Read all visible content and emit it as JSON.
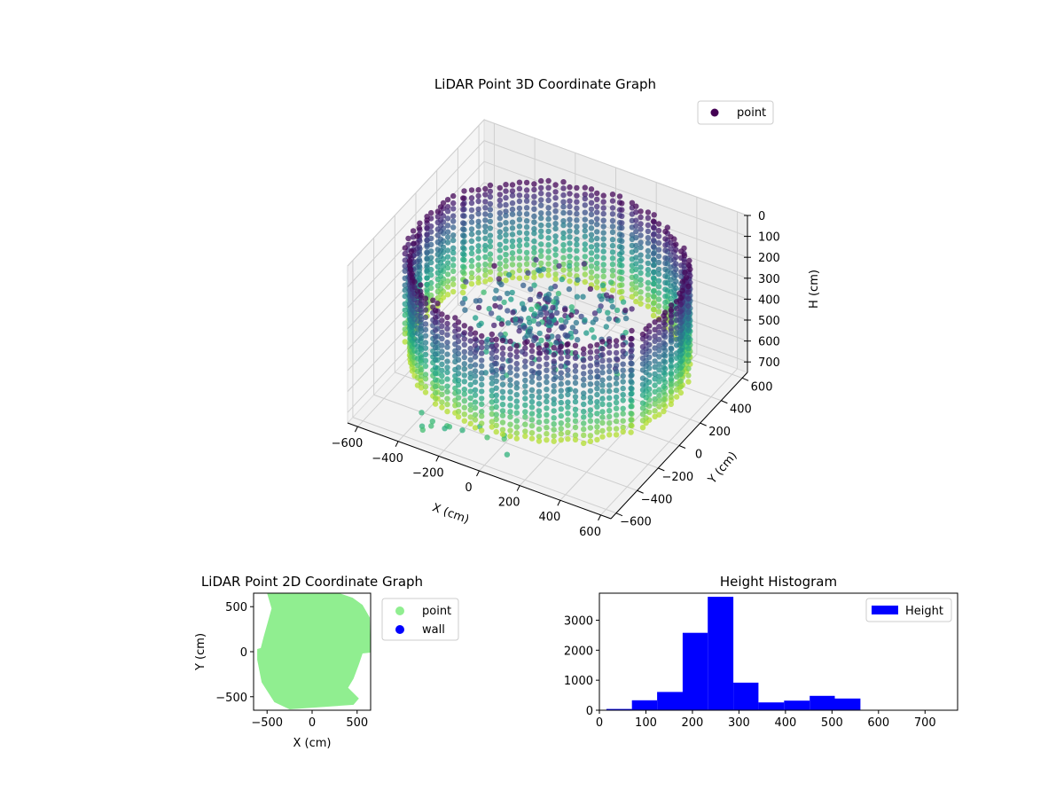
{
  "chart_data": [
    {
      "type": "scatter3d",
      "title": "LiDAR Point 3D Coordinate Graph",
      "xlabel": "X (cm)",
      "ylabel": "Y (cm)",
      "zlabel": "H (cm)",
      "xlim": [
        -650,
        650
      ],
      "ylim": [
        -650,
        650
      ],
      "zlim": [
        0,
        750
      ],
      "z_inverted": true,
      "xticks": [
        -600,
        -400,
        -200,
        0,
        200,
        400,
        600
      ],
      "yticks": [
        -600,
        -400,
        -200,
        0,
        200,
        400,
        600
      ],
      "zticks": [
        0,
        100,
        200,
        300,
        400,
        500,
        600,
        700
      ],
      "colormap": "viridis",
      "legend": {
        "location": "top-right",
        "entries": [
          {
            "label": "point",
            "color": "#440154"
          }
        ]
      },
      "grid": true,
      "series": [
        {
          "name": "point",
          "description_shape": "ring wall of points with scattered interior clusters"
        }
      ]
    },
    {
      "type": "scatter",
      "title": "LiDAR Point 2D Coordinate Graph",
      "xlabel": "X (cm)",
      "ylabel": "Y (cm)",
      "xlim": [
        -650,
        650
      ],
      "ylim": [
        -650,
        650
      ],
      "xticks": [
        -500,
        0,
        500
      ],
      "yticks": [
        -500,
        0,
        500
      ],
      "legend": {
        "location": "outside-right",
        "entries": [
          {
            "label": "point",
            "color": "#90ee90"
          },
          {
            "label": "wall",
            "color": "#0000ff"
          }
        ]
      },
      "outline": [
        [
          -500,
          650
        ],
        [
          -370,
          660
        ],
        [
          300,
          660
        ],
        [
          450,
          600
        ],
        [
          560,
          520
        ],
        [
          640,
          380
        ],
        [
          655,
          -10
        ],
        [
          560,
          -20
        ],
        [
          520,
          -140
        ],
        [
          460,
          -300
        ],
        [
          400,
          -400
        ],
        [
          520,
          -520
        ],
        [
          460,
          -590
        ],
        [
          -250,
          -640
        ],
        [
          -420,
          -560
        ],
        [
          -560,
          -340
        ],
        [
          -610,
          -90
        ],
        [
          -610,
          30
        ],
        [
          -570,
          40
        ],
        [
          -540,
          160
        ],
        [
          -500,
          300
        ],
        [
          -450,
          480
        ]
      ]
    },
    {
      "type": "histogram",
      "title": "Height Histogram",
      "xlim": [
        0,
        770
      ],
      "ylim": [
        0,
        3900
      ],
      "xticks": [
        0,
        100,
        200,
        300,
        400,
        500,
        600,
        700
      ],
      "yticks": [
        0,
        1000,
        2000,
        3000
      ],
      "bar_color": "#0000ff",
      "legend": {
        "location": "top-right",
        "entries": [
          {
            "label": "Height",
            "color": "#0000ff"
          }
        ]
      },
      "bins": [
        {
          "start": 15,
          "end": 70,
          "value": 40
        },
        {
          "start": 70,
          "end": 124,
          "value": 330
        },
        {
          "start": 124,
          "end": 179,
          "value": 610
        },
        {
          "start": 179,
          "end": 233,
          "value": 2580
        },
        {
          "start": 233,
          "end": 288,
          "value": 3780
        },
        {
          "start": 288,
          "end": 342,
          "value": 920
        },
        {
          "start": 342,
          "end": 397,
          "value": 260
        },
        {
          "start": 397,
          "end": 452,
          "value": 320
        },
        {
          "start": 452,
          "end": 506,
          "value": 480
        },
        {
          "start": 506,
          "end": 561,
          "value": 390
        },
        {
          "start": 561,
          "end": 615,
          "value": 0
        },
        {
          "start": 615,
          "end": 670,
          "value": 0
        },
        {
          "start": 670,
          "end": 724,
          "value": 0
        },
        {
          "start": 724,
          "end": 755,
          "value": 0
        }
      ]
    }
  ]
}
